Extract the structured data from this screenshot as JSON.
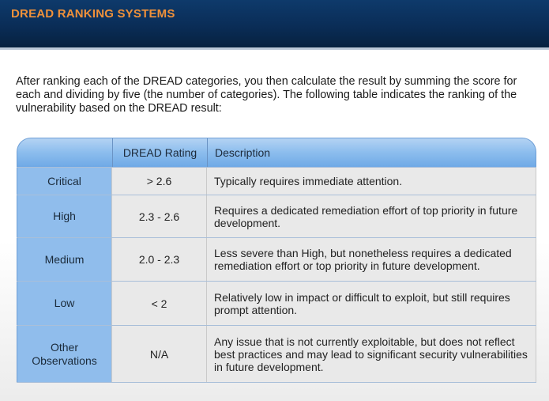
{
  "header": {
    "title": "DREAD RANKING SYSTEMS"
  },
  "intro": "After ranking each of the DREAD categories, you then calculate the result by summing the score for each and dividing by five (the number of categories).  The following table indicates the ranking of the vulnerability based on the DREAD result:",
  "table": {
    "columns": [
      "",
      "DREAD Rating",
      "Description"
    ],
    "rows": [
      {
        "level": "Critical",
        "rating": "> 2.6",
        "description": "Typically requires immediate attention."
      },
      {
        "level": "High",
        "rating": "2.3 - 2.6",
        "description": "Requires a dedicated remediation effort of top priority in future development."
      },
      {
        "level": "Medium",
        "rating": "2.0 - 2.3",
        "description": "Less severe than High, but nonetheless requires a dedicated remediation effort or top priority in future development."
      },
      {
        "level": "Low",
        "rating": "< 2",
        "description": "Relatively low in impact or difficult to exploit, but still requires prompt attention."
      },
      {
        "level": "Other Observations",
        "rating": "N/A",
        "description": "Any issue that is not currently exploitable, but does not reflect best practices and may lead to significant security vulnerabilities in future development."
      }
    ]
  },
  "colors": {
    "header_bg": "#0a2d57",
    "title": "#f0913a",
    "level_cell": "#90bdec",
    "body_cell": "#e9e9e9"
  }
}
